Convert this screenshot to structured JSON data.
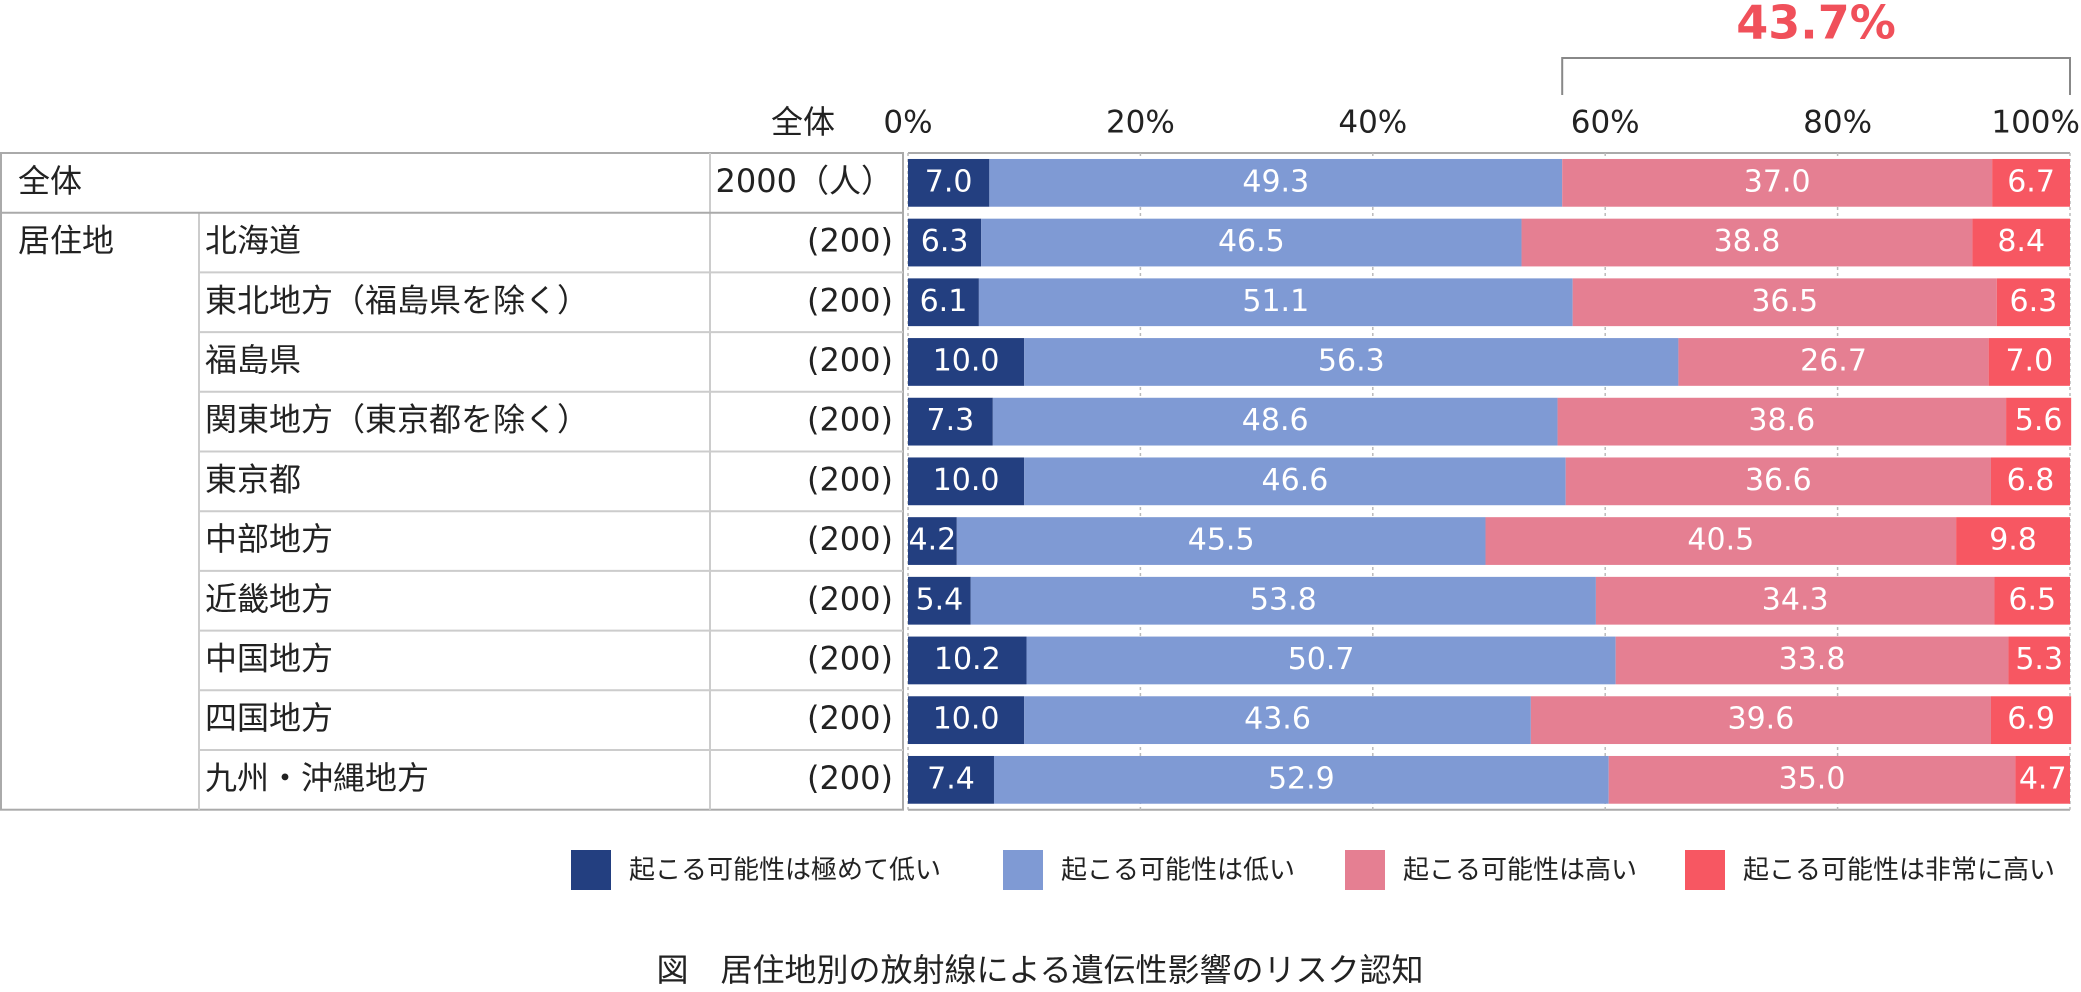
{
  "chart_data": {
    "type": "stacked-bar-horizontal",
    "title": "図　居住地別の放射線による遺伝性影響のリスク認知",
    "n_header": "全体",
    "group": "居住地",
    "categories": [
      "全体",
      "北海道",
      "東北地方（福島県を除く）",
      "福島県",
      "関東地方（東京都を除く）",
      "東京都",
      "中部地方",
      "近畿地方",
      "中国地方",
      "四国地方",
      "九州・沖縄地方"
    ],
    "n_labels": [
      "2000（人）",
      "(200)",
      "(200)",
      "(200)",
      "(200)",
      "(200)",
      "(200)",
      "(200)",
      "(200)",
      "(200)",
      "(200)"
    ],
    "annotation": "43.7%",
    "xlim": [
      0,
      100
    ],
    "xticks": [
      {
        "value": 0,
        "label": "0%"
      },
      {
        "value": 20,
        "label": "20%"
      },
      {
        "value": 40,
        "label": "40%"
      },
      {
        "value": 60,
        "label": "60%"
      },
      {
        "value": 80,
        "label": "80%"
      },
      {
        "value": 100,
        "label": "100%"
      }
    ],
    "grid": true,
    "legend": "bottom",
    "series": [
      {
        "name": "起こる可能性は極めて低い",
        "color": "#233f80",
        "values": [
          7.0,
          6.3,
          6.1,
          10.0,
          7.3,
          10.0,
          4.2,
          5.4,
          10.2,
          10.0,
          7.4
        ],
        "value_labels": [
          "7.0",
          "6.3",
          "6.1",
          "10.0",
          "7.3",
          "10.0",
          "4.2",
          "5.4",
          "10.2",
          "10.0",
          "7.4"
        ]
      },
      {
        "name": "起こる可能性は低い",
        "color": "#7f9ad4",
        "values": [
          49.3,
          46.5,
          51.1,
          56.3,
          48.6,
          46.6,
          45.5,
          53.8,
          50.7,
          43.6,
          52.9
        ],
        "value_labels": [
          "49.3",
          "46.5",
          "51.1",
          "56.3",
          "48.6",
          "46.6",
          "45.5",
          "53.8",
          "50.7",
          "43.6",
          "52.9"
        ]
      },
      {
        "name": "起こる可能性は高い",
        "color": "#e57f92",
        "values": [
          37.0,
          38.8,
          36.5,
          26.7,
          38.6,
          36.6,
          40.5,
          34.3,
          33.8,
          39.6,
          35.0
        ],
        "value_labels": [
          "37.0",
          "38.8",
          "36.5",
          "26.7",
          "38.6",
          "36.6",
          "40.5",
          "34.3",
          "33.8",
          "39.6",
          "35.0"
        ]
      },
      {
        "name": "起こる可能性は非常に高い",
        "color": "#f75762",
        "values": [
          6.7,
          8.4,
          6.3,
          7.0,
          5.6,
          6.8,
          9.8,
          6.5,
          5.3,
          6.9,
          4.7
        ],
        "value_labels": [
          "6.7",
          "8.4",
          "6.3",
          "7.0",
          "5.6",
          "6.8",
          "9.8",
          "6.5",
          "5.3",
          "6.9",
          "4.7"
        ]
      }
    ]
  }
}
